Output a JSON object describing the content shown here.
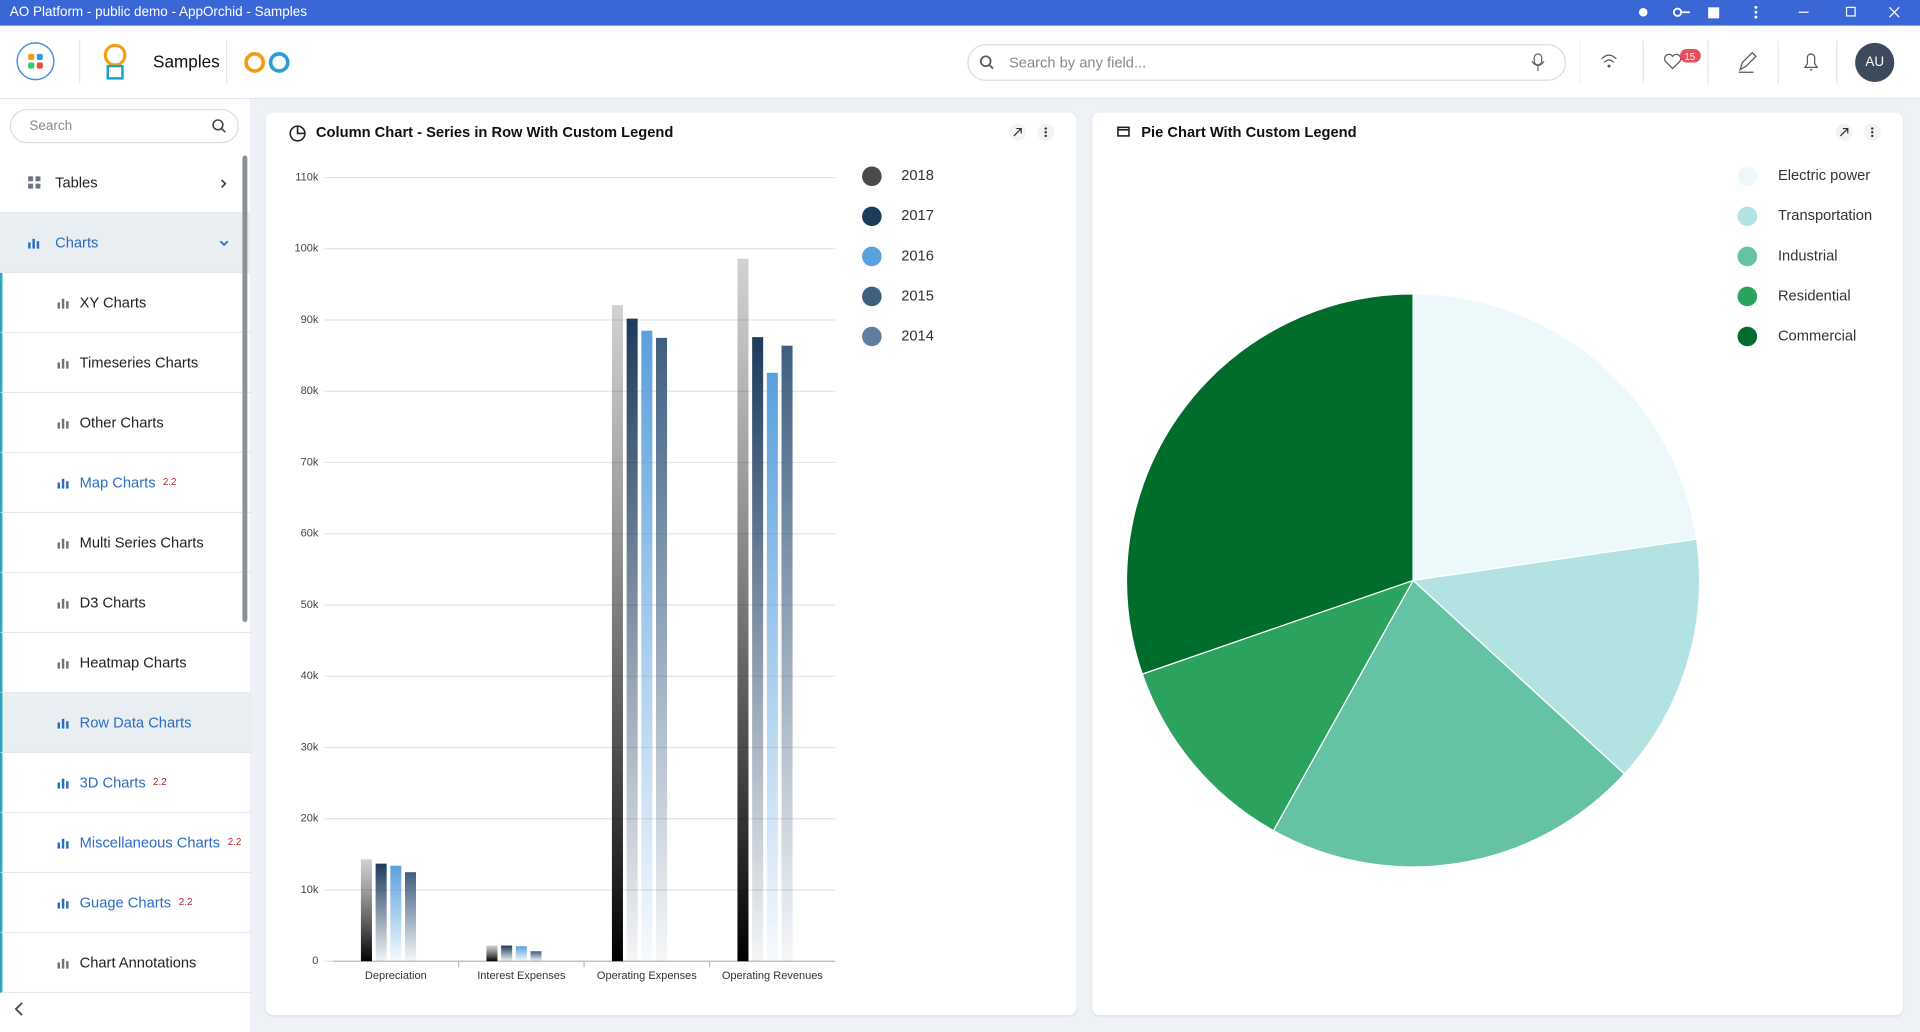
{
  "window_title": "AO Platform - public demo - AppOrchid - Samples",
  "header": {
    "app_name": "Samples",
    "search_placeholder": "Search by any field...",
    "favorites_count": 15,
    "user_initials": "AU"
  },
  "sidebar": {
    "search_placeholder": "Search",
    "items": [
      {
        "label": "Tables",
        "level": 0
      },
      {
        "label": "Charts",
        "level": 0,
        "expanded": true
      },
      {
        "label": "XY Charts",
        "level": 1
      },
      {
        "label": "Timeseries Charts",
        "level": 1
      },
      {
        "label": "Other Charts",
        "level": 1
      },
      {
        "label": "Map Charts",
        "level": 1,
        "badge": 2.2
      },
      {
        "label": "Multi Series Charts",
        "level": 1
      },
      {
        "label": "D3 Charts",
        "level": 1
      },
      {
        "label": "Heatmap Charts",
        "level": 1
      },
      {
        "label": "Row Data Charts",
        "level": 1,
        "selected": true
      },
      {
        "label": "3D Charts",
        "level": 1,
        "badge": 2.2
      },
      {
        "label": "Miscellaneous Charts",
        "level": 1,
        "badge": 2.2
      },
      {
        "label": "Guage Charts",
        "level": 1,
        "badge": 2.2
      },
      {
        "label": "Chart Annotations",
        "level": 1
      }
    ]
  },
  "chart_data": [
    {
      "type": "bar",
      "title": "Column Chart - Series in Row With Custom Legend",
      "categories": [
        "Depreciation",
        "Interest Expenses",
        "Operating Expenses",
        "Operating Revenues"
      ],
      "series": [
        {
          "name": "2018",
          "color": "#4a4a4a",
          "values": [
            14300,
            2200,
            92100,
            98600
          ]
        },
        {
          "name": "2017",
          "color": "#1d3b5c",
          "values": [
            13700,
            2200,
            90200,
            87600
          ]
        },
        {
          "name": "2016",
          "color": "#5aa0dc",
          "values": [
            13400,
            2100,
            88500,
            82600
          ]
        },
        {
          "name": "2015",
          "color": "#3f5f80",
          "values": [
            12500,
            1400,
            87500,
            86400
          ]
        },
        {
          "name": "2014",
          "color": "#5f7f9f",
          "values": [
            null,
            null,
            null,
            null
          ]
        }
      ],
      "ylim": [
        0,
        110000
      ],
      "yticks": [
        0,
        {
          "value": 10000,
          "label": "10k"
        },
        {
          "value": 20000,
          "label": "20k"
        },
        {
          "value": 30000,
          "label": "30k"
        },
        {
          "value": 40000,
          "label": "40k"
        },
        {
          "value": 50000,
          "label": "50k"
        },
        {
          "value": 60000,
          "label": "60k"
        },
        {
          "value": 70000,
          "label": "70k"
        },
        {
          "value": 80000,
          "label": "80k"
        },
        {
          "value": 90000,
          "label": "90k"
        },
        {
          "value": 100000,
          "label": "100k"
        },
        {
          "value": 110000,
          "label": "110k"
        }
      ],
      "grid": true,
      "legend": "right"
    },
    {
      "type": "pie",
      "title": "Pie Chart With Custom Legend",
      "categories": [
        "Electric power",
        "Transportation",
        "Industrial",
        "Residential",
        "Commercial"
      ],
      "values": [
        22.7,
        14.1,
        21.3,
        11.6,
        30.3
      ],
      "colors": [
        "#edf8fb",
        "#b2e2e2",
        "#66c2a4",
        "#2ca25f",
        "#006d2c"
      ],
      "legend": "top-right"
    }
  ]
}
